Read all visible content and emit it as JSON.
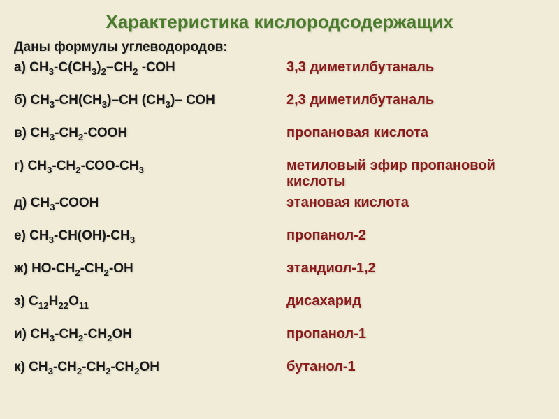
{
  "title": "Характеристика кислородсодержащих",
  "subtitle": "Даны формулы углеводородов:",
  "rows": [
    {
      "letter": "а)",
      "formula": "СН<sub>3</sub>-С(СН<sub>3</sub>)<sub>2</sub>–СН<sub>2</sub> -СОН",
      "name": "3,3 диметилбутаналь"
    },
    {
      "letter": "б)",
      "formula": "СН<sub>3</sub>-СН(СН<sub>3</sub>)–СН (СН<sub>3</sub>)– СОН",
      "name": "2,3 диметилбутаналь"
    },
    {
      "letter": "в)",
      "formula": "СН<sub>3</sub>-СН<sub>2</sub>-СООН",
      "name": "пропановая кислота"
    },
    {
      "letter": "г)",
      "formula": "СН<sub>3</sub>-СН<sub>2</sub>-СОО-СН<sub>3</sub>",
      "name": "метиловый эфир пропановой кислоты"
    },
    {
      "letter": "д)",
      "formula": "СН<sub>3</sub>-СООН",
      "name": "этановая кислота"
    },
    {
      "letter": "е)",
      "formula": "СН<sub>3</sub>-СН(ОН)-СН<sub>3</sub>",
      "name": "пропанол-2"
    },
    {
      "letter": "ж)",
      "formula": "НО-СН<sub>2</sub>-СН<sub>2</sub>-ОН",
      "name": "этандиол-1,2"
    },
    {
      "letter": "з)",
      "formula": "С<sub>12</sub>Н<sub>22</sub>О<sub>11</sub>",
      "name": "дисахарид"
    },
    {
      "letter": "и)",
      "formula": "СН<sub>3</sub>-СН<sub>2</sub>-СН<sub>2</sub>ОН",
      "name": "пропанол-1"
    },
    {
      "letter": "к)",
      "formula": "СН<sub>3</sub>-СН<sub>2</sub>-СН<sub>2</sub>-СН<sub>2</sub>ОН",
      "name": "бутанол-1"
    }
  ],
  "colors": {
    "background": "#f0ecd8",
    "title_color": "#4a7c2c",
    "formula_color": "#1a1a1a",
    "name_color": "#8b1a1a"
  }
}
